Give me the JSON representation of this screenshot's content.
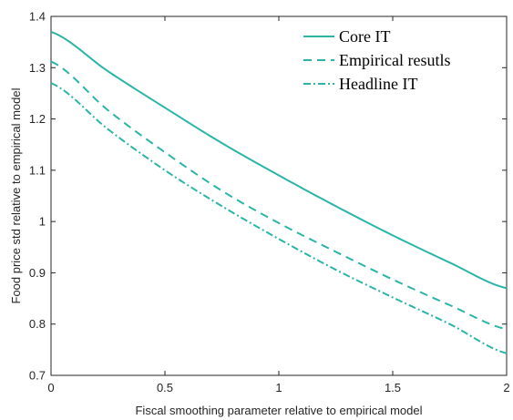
{
  "chart_data": {
    "type": "line",
    "xlabel": "Fiscal smoothing parameter relative to empirical model",
    "ylabel": "Food price std relative to empirical model",
    "xlim": [
      0,
      2
    ],
    "ylim": [
      0.7,
      1.4
    ],
    "x_ticks": [
      "0",
      "0.5",
      "1",
      "1.5",
      "2"
    ],
    "y_ticks": [
      "0.7",
      "0.8",
      "0.9",
      "1",
      "1.1",
      "1.2",
      "1.3",
      "1.4"
    ],
    "grid": false,
    "legend_position": "top-right",
    "x": [
      0,
      0.25,
      0.5,
      0.75,
      1.0,
      1.25,
      1.5,
      1.75,
      2.0
    ],
    "series": [
      {
        "name": "Core IT",
        "style": "solid",
        "color": "#2ab5a8",
        "values": [
          1.37,
          1.293,
          1.222,
          1.153,
          1.09,
          1.03,
          0.973,
          0.92,
          0.87
        ]
      },
      {
        "name": "Empirical resutls",
        "style": "dashed",
        "color": "#2ab5a8",
        "values": [
          1.312,
          1.217,
          1.135,
          1.06,
          0.997,
          0.941,
          0.887,
          0.837,
          0.79
        ]
      },
      {
        "name": "Headline IT",
        "style": "dashdot",
        "color": "#2ab5a8",
        "values": [
          1.27,
          1.18,
          1.1,
          1.03,
          0.966,
          0.906,
          0.852,
          0.8,
          0.743
        ]
      }
    ]
  }
}
